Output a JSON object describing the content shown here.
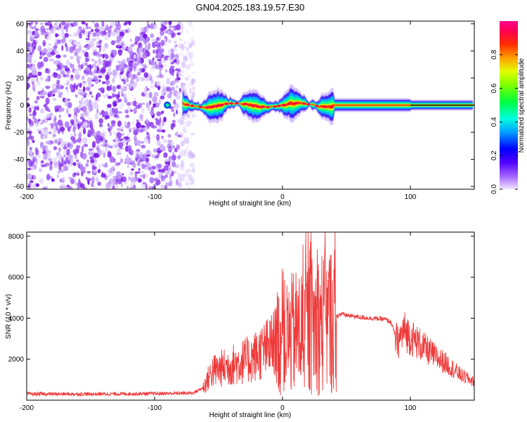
{
  "title": "GN04.2025.183.19.57.E30",
  "chart_data": [
    {
      "type": "heatmap",
      "xlabel": "Height of straight line (km)",
      "ylabel": "Frequency (Hz)",
      "xlim": [
        -200,
        150
      ],
      "ylim": [
        -62,
        62
      ],
      "xticks": [
        -200,
        -100,
        0,
        100
      ],
      "yticks": [
        -60,
        -40,
        -20,
        0,
        20,
        40,
        60
      ],
      "colorbar": {
        "label": "Normalized spectral amplitude",
        "range": [
          0,
          1
        ],
        "ticks": [
          0.0,
          0.2,
          0.4,
          0.6,
          0.8
        ]
      },
      "features": {
        "broadband_noise_region_km": [
          -200,
          -75
        ],
        "narrowband_signal_region_km": [
          -78,
          150
        ],
        "signal_center_frequency_hz": 0
      },
      "colors": {
        "noise_purple": "#8a2be2",
        "colormap": [
          "#f2e6ff",
          "#8000ff",
          "#0000ff",
          "#00c8ff",
          "#00ff80",
          "#80ff00",
          "#ffff00",
          "#ff8000",
          "#ff0000",
          "#ff0080"
        ]
      }
    },
    {
      "type": "line",
      "xlabel": "Height of straight line (km)",
      "ylabel": "SNR (10 * v/v)",
      "xlim": [
        -200,
        150
      ],
      "ylim": [
        0,
        8200
      ],
      "xticks": [
        -200,
        -100,
        0,
        100
      ],
      "yticks": [
        2000,
        4000,
        6000,
        8000
      ],
      "color": "#ee3a3a",
      "envelope": {
        "x": [
          -200,
          -150,
          -100,
          -70,
          -62,
          -55,
          -45,
          -35,
          -25,
          -15,
          -10,
          -5,
          0,
          5,
          10,
          15,
          20,
          25,
          30,
          35,
          40,
          45,
          50,
          55,
          60,
          70,
          80,
          85,
          90,
          95,
          100,
          110,
          120,
          130,
          140,
          150
        ],
        "y": [
          300,
          300,
          320,
          350,
          600,
          1400,
          1600,
          1800,
          2000,
          2400,
          2600,
          2900,
          3000,
          3100,
          3300,
          3400,
          3600,
          3700,
          3800,
          3900,
          4000,
          4200,
          4150,
          4100,
          4050,
          4000,
          3950,
          3800,
          2800,
          3400,
          3100,
          2600,
          2100,
          1700,
          1200,
          900
        ]
      }
    }
  ]
}
